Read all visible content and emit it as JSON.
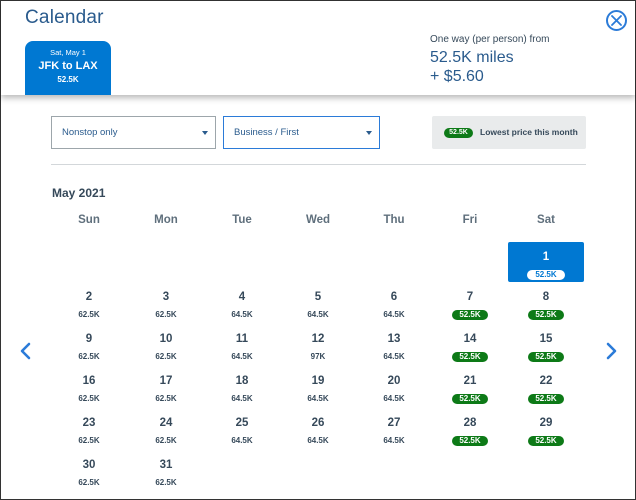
{
  "header": {
    "title": "Calendar",
    "trip_tab": {
      "date": "Sat, May 1",
      "route": "JFK to LAX",
      "price": "52.5K"
    },
    "summary": {
      "label": "One way (per person) from",
      "miles": "52.5K miles",
      "fee": "+ $5.60"
    }
  },
  "filters": {
    "stops": "Nonstop only",
    "cabin": "Business / First",
    "legend_price": "52.5K",
    "legend_label": "Lowest price this month"
  },
  "calendar": {
    "month": "May 2021",
    "weekdays": [
      "Sun",
      "Mon",
      "Tue",
      "Wed",
      "Thu",
      "Fri",
      "Sat"
    ],
    "days": [
      {
        "day": "1",
        "price": "52.5K",
        "state": "selected"
      },
      {
        "day": "2",
        "price": "62.5K",
        "state": "normal"
      },
      {
        "day": "3",
        "price": "62.5K",
        "state": "normal"
      },
      {
        "day": "4",
        "price": "64.5K",
        "state": "normal"
      },
      {
        "day": "5",
        "price": "64.5K",
        "state": "normal"
      },
      {
        "day": "6",
        "price": "64.5K",
        "state": "normal"
      },
      {
        "day": "7",
        "price": "52.5K",
        "state": "lowest"
      },
      {
        "day": "8",
        "price": "52.5K",
        "state": "lowest"
      },
      {
        "day": "9",
        "price": "62.5K",
        "state": "normal"
      },
      {
        "day": "10",
        "price": "62.5K",
        "state": "normal"
      },
      {
        "day": "11",
        "price": "64.5K",
        "state": "normal"
      },
      {
        "day": "12",
        "price": "97K",
        "state": "normal"
      },
      {
        "day": "13",
        "price": "64.5K",
        "state": "normal"
      },
      {
        "day": "14",
        "price": "52.5K",
        "state": "lowest"
      },
      {
        "day": "15",
        "price": "52.5K",
        "state": "lowest"
      },
      {
        "day": "16",
        "price": "62.5K",
        "state": "normal"
      },
      {
        "day": "17",
        "price": "62.5K",
        "state": "normal"
      },
      {
        "day": "18",
        "price": "64.5K",
        "state": "normal"
      },
      {
        "day": "19",
        "price": "64.5K",
        "state": "normal"
      },
      {
        "day": "20",
        "price": "64.5K",
        "state": "normal"
      },
      {
        "day": "21",
        "price": "52.5K",
        "state": "lowest"
      },
      {
        "day": "22",
        "price": "52.5K",
        "state": "lowest"
      },
      {
        "day": "23",
        "price": "62.5K",
        "state": "normal"
      },
      {
        "day": "24",
        "price": "62.5K",
        "state": "normal"
      },
      {
        "day": "25",
        "price": "64.5K",
        "state": "normal"
      },
      {
        "day": "26",
        "price": "64.5K",
        "state": "normal"
      },
      {
        "day": "27",
        "price": "64.5K",
        "state": "normal"
      },
      {
        "day": "28",
        "price": "52.5K",
        "state": "lowest"
      },
      {
        "day": "29",
        "price": "52.5K",
        "state": "lowest"
      },
      {
        "day": "30",
        "price": "62.5K",
        "state": "normal"
      },
      {
        "day": "31",
        "price": "62.5K",
        "state": "normal"
      }
    ]
  },
  "colors": {
    "accent": "#0078d2",
    "lowest": "#0d7a17",
    "title": "#2a5b8d"
  },
  "icons": {
    "close": "close-circle-icon",
    "prev": "chevron-left-icon",
    "next": "chevron-right-icon",
    "select": "caret-down-icon"
  }
}
